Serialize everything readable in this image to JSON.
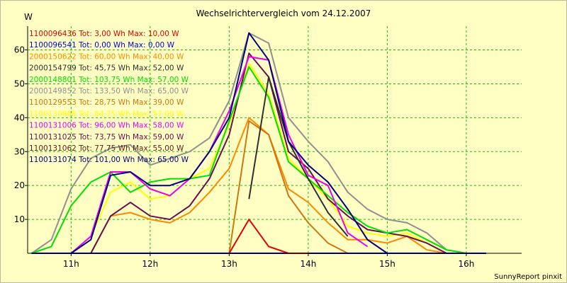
{
  "chart_data": {
    "type": "line",
    "title": "Wechselrichtervergleich vom 24.12.2007",
    "ylabel": "W",
    "footer": "SunnyReport pinxit",
    "xlim": [
      10.45,
      16.7
    ],
    "ylim": [
      0,
      67
    ],
    "x_ticks": [
      11,
      12,
      13,
      14,
      15,
      16
    ],
    "x_tick_labels": [
      "11h",
      "12h",
      "13h",
      "14h",
      "15h",
      "16h"
    ],
    "y_ticks": [
      10,
      20,
      30,
      40,
      50,
      60
    ],
    "y_tick_labels": [
      "10",
      "20",
      "30",
      "40",
      "50",
      "60"
    ],
    "x": [
      10.5,
      10.75,
      11.0,
      11.25,
      11.5,
      11.75,
      12.0,
      12.25,
      12.5,
      12.75,
      13.0,
      13.25,
      13.5,
      13.75,
      14.0,
      14.25,
      14.5,
      14.75,
      15.0,
      15.25,
      15.5,
      15.75,
      16.0,
      16.25
    ],
    "grid": true,
    "legend_position": "top-left",
    "series": [
      {
        "name": "1100096436 Tot: 3,00 Wh Max: 10,00 W",
        "color": "#E00000",
        "values": [
          null,
          null,
          null,
          null,
          null,
          null,
          null,
          null,
          null,
          null,
          0,
          10,
          2,
          0,
          0,
          null,
          null,
          null,
          null,
          null,
          null,
          null,
          null,
          null
        ]
      },
      {
        "name": "1100096541 Tot: 0,00 Wh Max: 0,00 W",
        "color": "#0000E0",
        "values": [
          0,
          0,
          0,
          0,
          0,
          0,
          0,
          0,
          0,
          0,
          0,
          0,
          0,
          0,
          0,
          0,
          0,
          0,
          0,
          0,
          0,
          0,
          0,
          0
        ]
      },
      {
        "name": "2000150622 Tot: 60,00 Wh Max: 40,00 W",
        "color": "#FF8800",
        "values": [
          null,
          null,
          0,
          0,
          11,
          12,
          10,
          9,
          12,
          18,
          25,
          40,
          35,
          19,
          15,
          9,
          4,
          4,
          3,
          5,
          1,
          0,
          null,
          null
        ]
      },
      {
        "name": "2000154799 Tot: 45,75 Wh Max: 52,00 W",
        "color": "#303030",
        "values": [
          null,
          null,
          null,
          null,
          null,
          null,
          null,
          null,
          null,
          null,
          null,
          16,
          52,
          33,
          22,
          12,
          5,
          null,
          null,
          null,
          null,
          null,
          null,
          null
        ]
      },
      {
        "name": "2000148801 Tot: 103,75 Wh Max: 57,00 W",
        "color": "#00E000",
        "values": [
          0,
          2,
          14,
          21,
          24,
          18,
          21,
          22,
          22,
          23,
          39,
          55,
          46,
          27,
          22,
          17,
          12,
          8,
          6,
          7,
          4,
          1,
          0,
          0
        ]
      },
      {
        "name": "2000149852 Tot: 133,50 Wh Max: 65,00 W",
        "color": "#909090",
        "values": [
          0,
          4,
          19,
          28,
          31,
          32,
          26,
          28,
          30,
          34,
          45,
          65,
          62,
          40,
          33,
          27,
          18,
          13,
          10,
          9,
          6,
          1,
          0,
          0
        ]
      },
      {
        "name": "1100129553 Tot: 28,75 Wh Max: 39,00 W",
        "color": "#CC7711",
        "values": [
          null,
          null,
          null,
          null,
          null,
          null,
          null,
          null,
          null,
          0,
          0,
          39,
          35,
          17,
          9,
          3,
          0,
          null,
          null,
          null,
          null,
          null,
          null,
          null
        ]
      },
      {
        "name": "1100130868 Tot: 84,75 Wh Max: 57,00 W",
        "color": "#FFFF00",
        "values": [
          null,
          null,
          0,
          5,
          18,
          21,
          16,
          17,
          22,
          25,
          38,
          56,
          47,
          28,
          22,
          16,
          8,
          6,
          5,
          6,
          3,
          0,
          null,
          null
        ]
      },
      {
        "name": "1100131006 Tot: 96,00 Wh Max: 58,00 W",
        "color": "#EE00EE",
        "values": [
          null,
          null,
          0,
          5,
          24,
          24,
          19,
          17,
          22,
          30,
          42,
          58,
          57,
          35,
          23,
          20,
          6,
          2,
          null,
          null,
          null,
          null,
          null,
          null
        ]
      },
      {
        "name": "1100131025 Tot: 73,75 Wh Max: 59,00 W",
        "color": "#6A0E50",
        "values": [
          null,
          null,
          0,
          0,
          11,
          15,
          11,
          10,
          14,
          22,
          35,
          59,
          52,
          30,
          25,
          16,
          11,
          7,
          6,
          5,
          3,
          0,
          null,
          null
        ]
      },
      {
        "name": "1100131062 Tot: 77,75 Wh Max: 55,00 W",
        "color": "#601818",
        "values": [
          null,
          null,
          null,
          null,
          null,
          null,
          null,
          null,
          null,
          null,
          null,
          null,
          null,
          null,
          null,
          null,
          null,
          null,
          null,
          null,
          null,
          null,
          null,
          null
        ]
      },
      {
        "name": "1100131074 Tot: 101,00 Wh Max: 65,00 W",
        "color": "#000080",
        "values": [
          null,
          null,
          0,
          4,
          23,
          24,
          20,
          20,
          22,
          30,
          40,
          65,
          57,
          33,
          26,
          21,
          13,
          4,
          0,
          null,
          null,
          null,
          null,
          null
        ]
      }
    ]
  }
}
